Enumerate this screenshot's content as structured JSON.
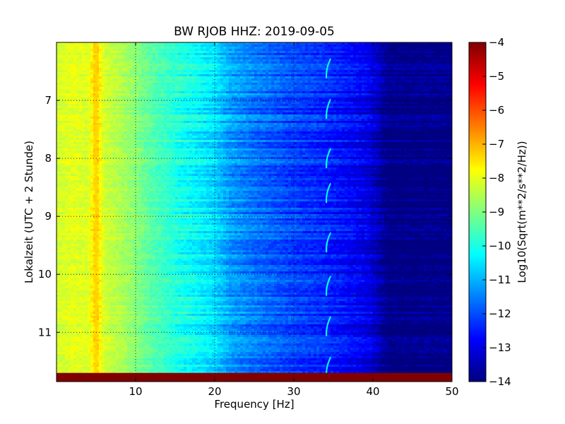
{
  "chart_data": {
    "type": "heatmap",
    "title": "BW RJOB HHZ: 2019-09-05",
    "xlabel": "Frequency [Hz]",
    "ylabel": "Lokalzeit (UTC + 2 Stunde)",
    "xlim": [
      0,
      50
    ],
    "ylim": [
      11.85,
      6.0
    ],
    "y_axis_inverted": true,
    "x_ticks": [
      10,
      20,
      30,
      40,
      50
    ],
    "y_ticks": [
      7,
      8,
      9,
      10,
      11
    ],
    "grid": true,
    "grid_style": "dotted",
    "colormap": "jet",
    "colorbar": {
      "label": "Log10(Sqrt(m**2/s**2/Hz))",
      "min": -14,
      "max": -4,
      "ticks": [
        -4,
        -5,
        -6,
        -7,
        -8,
        -9,
        -10,
        -11,
        -12,
        -13,
        -14
      ]
    },
    "spectrum_profile": {
      "description_values": "approximate power level (log10) across frequency",
      "frequency_hz": [
        0,
        2,
        4,
        5,
        6,
        8,
        10,
        12,
        15,
        18,
        20,
        22,
        25,
        28,
        30,
        33,
        35,
        38,
        40,
        41,
        42,
        45,
        50
      ],
      "level": [
        -8.2,
        -8.0,
        -8.1,
        -7.2,
        -8.2,
        -8.5,
        -8.9,
        -9.4,
        -9.9,
        -10.3,
        -10.6,
        -11.2,
        -11.6,
        -11.9,
        -12.1,
        -12.3,
        -12.5,
        -12.8,
        -13.1,
        -13.6,
        -14.0,
        -14.0,
        -14.0
      ]
    },
    "features": {
      "spectral_line_hz": 5.0,
      "arc_events_hz": 34.3,
      "arc_events_hours": [
        6.45,
        7.15,
        8.0,
        8.6,
        9.45,
        10.2,
        10.9,
        11.6
      ]
    },
    "data_gap": {
      "from_hour": 11.7,
      "to_hour": 11.85,
      "level": -4
    }
  }
}
